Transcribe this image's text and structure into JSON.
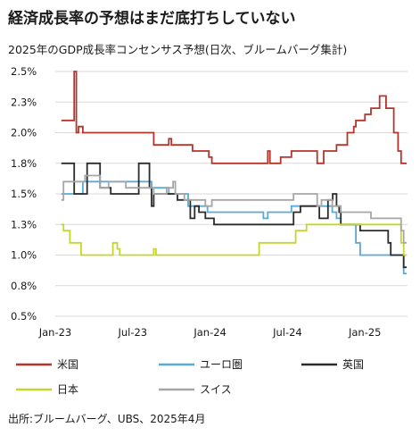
{
  "header": {
    "title": "経済成長率の予想はまだ底打ちしていない",
    "subtitle": "2025年のGDP成長率コンセンサス予想(日次、ブルームバーグ集計)"
  },
  "footer": {
    "source": "出所:ブルームバーグ、UBS、2025年4月"
  },
  "chart_data": {
    "type": "line",
    "title": "経済成長率の予想はまだ底打ちしていない",
    "subtitle": "2025年のGDP成長率コンセンサス予想(日次、ブルームバーグ集計)",
    "xlabel": "",
    "ylabel": "",
    "x_ticks": [
      "Jan-23",
      "Jul-23",
      "Jan-24",
      "Jul-24",
      "Jan-25"
    ],
    "x_tick_dates": [
      "2023-01",
      "2023-07",
      "2024-01",
      "2024-07",
      "2025-01"
    ],
    "x_range": [
      "2023-01",
      "2025-04"
    ],
    "y_ticks": [
      "2.5%",
      "2.3%",
      "2.0%",
      "1.8%",
      "1.5%",
      "1.3%",
      "1.0%",
      "0.8%",
      "0.5%"
    ],
    "y_tick_values": [
      2.5,
      2.25,
      2.0,
      1.75,
      1.5,
      1.25,
      1.0,
      0.75,
      0.5
    ],
    "ylim": [
      0.5,
      2.5
    ],
    "grid": "horizontal",
    "legend_position": "bottom",
    "series": [
      {
        "name": "米国",
        "color": "#b5342b",
        "points": [
          [
            "2023-01-15",
            2.1
          ],
          [
            "2023-02-10",
            2.1
          ],
          [
            "2023-02-15",
            2.5
          ],
          [
            "2023-02-20",
            2.0
          ],
          [
            "2023-02-25",
            2.05
          ],
          [
            "2023-03-05",
            2.0
          ],
          [
            "2023-08-15",
            2.0
          ],
          [
            "2023-08-20",
            1.9
          ],
          [
            "2023-09-20",
            1.9
          ],
          [
            "2023-09-25",
            1.95
          ],
          [
            "2023-10-01",
            1.9
          ],
          [
            "2023-11-15",
            1.9
          ],
          [
            "2023-11-20",
            1.85
          ],
          [
            "2023-12-20",
            1.85
          ],
          [
            "2023-12-28",
            1.8
          ],
          [
            "2024-01-05",
            1.75
          ],
          [
            "2024-05-10",
            1.75
          ],
          [
            "2024-05-15",
            1.85
          ],
          [
            "2024-05-20",
            1.75
          ],
          [
            "2024-06-10",
            1.75
          ],
          [
            "2024-06-15",
            1.8
          ],
          [
            "2024-07-10",
            1.85
          ],
          [
            "2024-09-05",
            1.85
          ],
          [
            "2024-09-10",
            1.75
          ],
          [
            "2024-09-20",
            1.75
          ],
          [
            "2024-09-25",
            1.85
          ],
          [
            "2024-10-20",
            1.85
          ],
          [
            "2024-10-25",
            1.9
          ],
          [
            "2024-11-15",
            1.9
          ],
          [
            "2024-11-20",
            2.0
          ],
          [
            "2024-12-05",
            2.05
          ],
          [
            "2024-12-10",
            2.1
          ],
          [
            "2024-12-25",
            2.1
          ],
          [
            "2025-01-01",
            2.15
          ],
          [
            "2025-01-15",
            2.2
          ],
          [
            "2025-01-30",
            2.2
          ],
          [
            "2025-02-05",
            2.3
          ],
          [
            "2025-02-15",
            2.3
          ],
          [
            "2025-02-20",
            2.2
          ],
          [
            "2025-03-01",
            2.2
          ],
          [
            "2025-03-08",
            2.0
          ],
          [
            "2025-03-18",
            1.85
          ],
          [
            "2025-03-25",
            1.75
          ],
          [
            "2025-04-08",
            1.75
          ]
        ]
      },
      {
        "name": "ユーロ圏",
        "color": "#5aa9d6",
        "points": [
          [
            "2023-01-15",
            1.5
          ],
          [
            "2023-03-01",
            1.5
          ],
          [
            "2023-03-05",
            1.6
          ],
          [
            "2023-08-10",
            1.6
          ],
          [
            "2023-08-15",
            1.55
          ],
          [
            "2023-09-20",
            1.55
          ],
          [
            "2023-09-25",
            1.5
          ],
          [
            "2023-11-01",
            1.5
          ],
          [
            "2023-11-10",
            1.4
          ],
          [
            "2023-12-15",
            1.4
          ],
          [
            "2023-12-25",
            1.35
          ],
          [
            "2024-05-01",
            1.35
          ],
          [
            "2024-05-05",
            1.3
          ],
          [
            "2024-05-15",
            1.35
          ],
          [
            "2024-07-01",
            1.35
          ],
          [
            "2024-07-10",
            1.4
          ],
          [
            "2024-10-10",
            1.4
          ],
          [
            "2024-10-15",
            1.35
          ],
          [
            "2024-10-25",
            1.3
          ],
          [
            "2024-11-05",
            1.25
          ],
          [
            "2024-12-05",
            1.25
          ],
          [
            "2024-12-10",
            1.1
          ],
          [
            "2024-12-20",
            1.0
          ],
          [
            "2025-03-25",
            1.0
          ],
          [
            "2025-04-01",
            0.85
          ],
          [
            "2025-04-08",
            0.85
          ]
        ]
      },
      {
        "name": "英国",
        "color": "#2b2b2b",
        "points": [
          [
            "2023-01-15",
            1.75
          ],
          [
            "2023-02-10",
            1.75
          ],
          [
            "2023-02-15",
            1.5
          ],
          [
            "2023-03-10",
            1.5
          ],
          [
            "2023-03-15",
            1.75
          ],
          [
            "2023-04-10",
            1.75
          ],
          [
            "2023-04-15",
            1.55
          ],
          [
            "2023-05-10",
            1.5
          ],
          [
            "2023-07-10",
            1.5
          ],
          [
            "2023-07-15",
            1.75
          ],
          [
            "2023-08-05",
            1.75
          ],
          [
            "2023-08-10",
            1.55
          ],
          [
            "2023-08-15",
            1.4
          ],
          [
            "2023-08-20",
            1.5
          ],
          [
            "2023-10-10",
            1.5
          ],
          [
            "2023-10-15",
            1.45
          ],
          [
            "2023-11-10",
            1.45
          ],
          [
            "2023-11-15",
            1.3
          ],
          [
            "2023-11-25",
            1.4
          ],
          [
            "2023-12-05",
            1.35
          ],
          [
            "2023-12-20",
            1.3
          ],
          [
            "2024-01-10",
            1.25
          ],
          [
            "2024-07-10",
            1.25
          ],
          [
            "2024-07-15",
            1.35
          ],
          [
            "2024-07-25",
            1.35
          ],
          [
            "2024-08-01",
            1.4
          ],
          [
            "2024-09-10",
            1.4
          ],
          [
            "2024-09-15",
            1.3
          ],
          [
            "2024-10-01",
            1.3
          ],
          [
            "2024-10-05",
            1.45
          ],
          [
            "2024-10-12",
            1.45
          ],
          [
            "2024-10-16",
            1.5
          ],
          [
            "2024-10-25",
            1.4
          ],
          [
            "2024-11-01",
            1.35
          ],
          [
            "2024-11-05",
            1.25
          ],
          [
            "2024-12-15",
            1.25
          ],
          [
            "2024-12-20",
            1.2
          ],
          [
            "2025-02-20",
            1.2
          ],
          [
            "2025-02-25",
            1.1
          ],
          [
            "2025-03-01",
            1.0
          ],
          [
            "2025-03-25",
            1.0
          ],
          [
            "2025-04-01",
            0.9
          ],
          [
            "2025-04-08",
            0.9
          ]
        ]
      },
      {
        "name": "日本",
        "color": "#c5d62b",
        "points": [
          [
            "2023-01-15",
            1.25
          ],
          [
            "2023-01-20",
            1.2
          ],
          [
            "2023-02-05",
            1.1
          ],
          [
            "2023-02-20",
            1.1
          ],
          [
            "2023-03-01",
            1.0
          ],
          [
            "2023-05-10",
            1.0
          ],
          [
            "2023-05-15",
            1.1
          ],
          [
            "2023-05-25",
            1.05
          ],
          [
            "2023-06-01",
            1.0
          ],
          [
            "2023-08-15",
            1.0
          ],
          [
            "2023-08-20",
            1.05
          ],
          [
            "2023-08-25",
            1.0
          ],
          [
            "2024-04-20",
            1.0
          ],
          [
            "2024-04-25",
            1.1
          ],
          [
            "2024-07-15",
            1.1
          ],
          [
            "2024-07-20",
            1.2
          ],
          [
            "2024-08-10",
            1.2
          ],
          [
            "2024-08-15",
            1.25
          ],
          [
            "2025-03-10",
            1.25
          ],
          [
            "2025-03-25",
            1.1
          ],
          [
            "2025-04-01",
            1.0
          ],
          [
            "2025-04-08",
            1.0
          ]
        ]
      },
      {
        "name": "スイス",
        "color": "#a6a6a6",
        "points": [
          [
            "2023-01-15",
            1.45
          ],
          [
            "2023-01-20",
            1.6
          ],
          [
            "2023-03-05",
            1.6
          ],
          [
            "2023-03-10",
            1.65
          ],
          [
            "2023-04-10",
            1.65
          ],
          [
            "2023-04-15",
            1.55
          ],
          [
            "2023-05-05",
            1.6
          ],
          [
            "2023-06-10",
            1.6
          ],
          [
            "2023-06-15",
            1.55
          ],
          [
            "2023-08-15",
            1.55
          ],
          [
            "2023-08-20",
            1.5
          ],
          [
            "2023-09-15",
            1.5
          ],
          [
            "2023-09-20",
            1.55
          ],
          [
            "2023-10-05",
            1.6
          ],
          [
            "2023-10-10",
            1.5
          ],
          [
            "2023-10-25",
            1.5
          ],
          [
            "2023-11-01",
            1.45
          ],
          [
            "2023-12-15",
            1.45
          ],
          [
            "2023-12-20",
            1.4
          ],
          [
            "2024-01-05",
            1.45
          ],
          [
            "2024-07-10",
            1.45
          ],
          [
            "2024-07-15",
            1.5
          ],
          [
            "2024-09-05",
            1.5
          ],
          [
            "2024-09-10",
            1.4
          ],
          [
            "2024-09-20",
            1.45
          ],
          [
            "2024-10-10",
            1.45
          ],
          [
            "2024-10-15",
            1.4
          ],
          [
            "2024-11-01",
            1.4
          ],
          [
            "2024-11-05",
            1.35
          ],
          [
            "2025-01-10",
            1.35
          ],
          [
            "2025-01-15",
            1.3
          ],
          [
            "2025-03-20",
            1.3
          ],
          [
            "2025-03-25",
            1.2
          ],
          [
            "2025-04-01",
            1.1
          ],
          [
            "2025-04-08",
            1.1
          ]
        ]
      }
    ]
  }
}
